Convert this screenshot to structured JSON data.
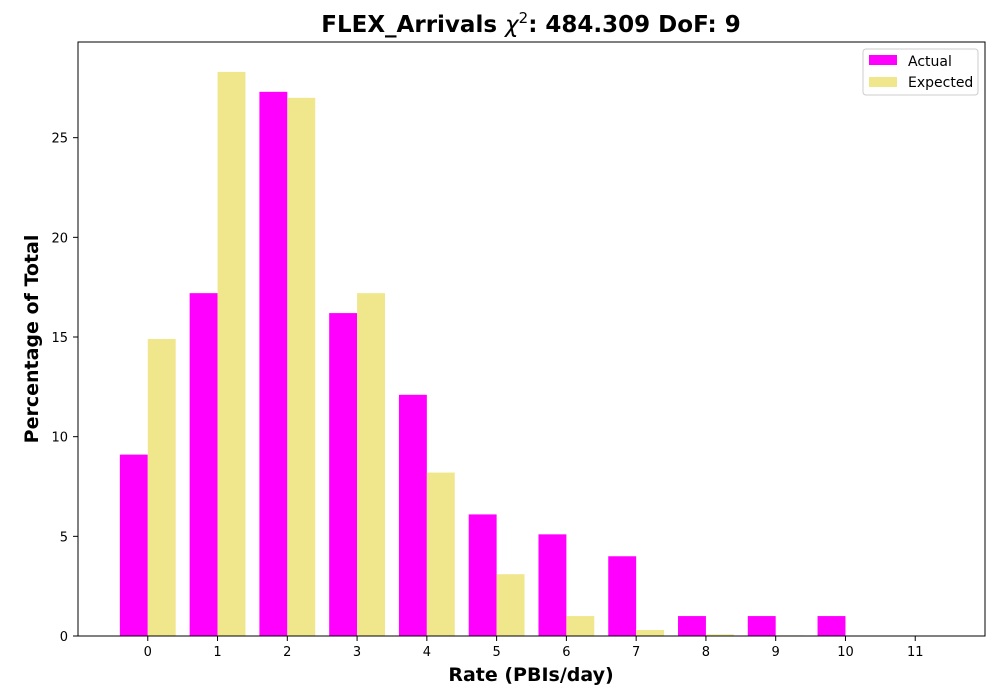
{
  "chart_data": {
    "type": "bar",
    "title": "FLEX_Arrivals χ²: 484.309 DoF: 9",
    "title_parts": {
      "prefix": "FLEX_Arrivals ",
      "chi": "χ",
      "sup": "2",
      "suffix": ": 484.309 DoF: 9"
    },
    "xlabel": "Rate (PBIs/day)",
    "ylabel": "Percentage of Total",
    "categories": [
      "0",
      "1",
      "2",
      "3",
      "4",
      "5",
      "6",
      "7",
      "8",
      "9",
      "10",
      "11"
    ],
    "series": [
      {
        "name": "Actual",
        "color": "#ff00ff",
        "values": [
          9.1,
          17.2,
          27.3,
          16.2,
          12.1,
          6.1,
          5.1,
          4.0,
          1.0,
          1.0,
          1.0,
          0.0
        ]
      },
      {
        "name": "Expected",
        "color": "#f0e68c",
        "values": [
          14.9,
          28.3,
          27.0,
          17.2,
          8.2,
          3.1,
          1.0,
          0.3,
          0.08,
          0.03,
          0.01,
          0.0
        ]
      }
    ],
    "xlim": [
      -1.0,
      12.0
    ],
    "ylim": [
      0,
      29.8
    ],
    "yticks": [
      0,
      5,
      10,
      15,
      20,
      25
    ],
    "grid": false,
    "legend_position": "top-right"
  }
}
